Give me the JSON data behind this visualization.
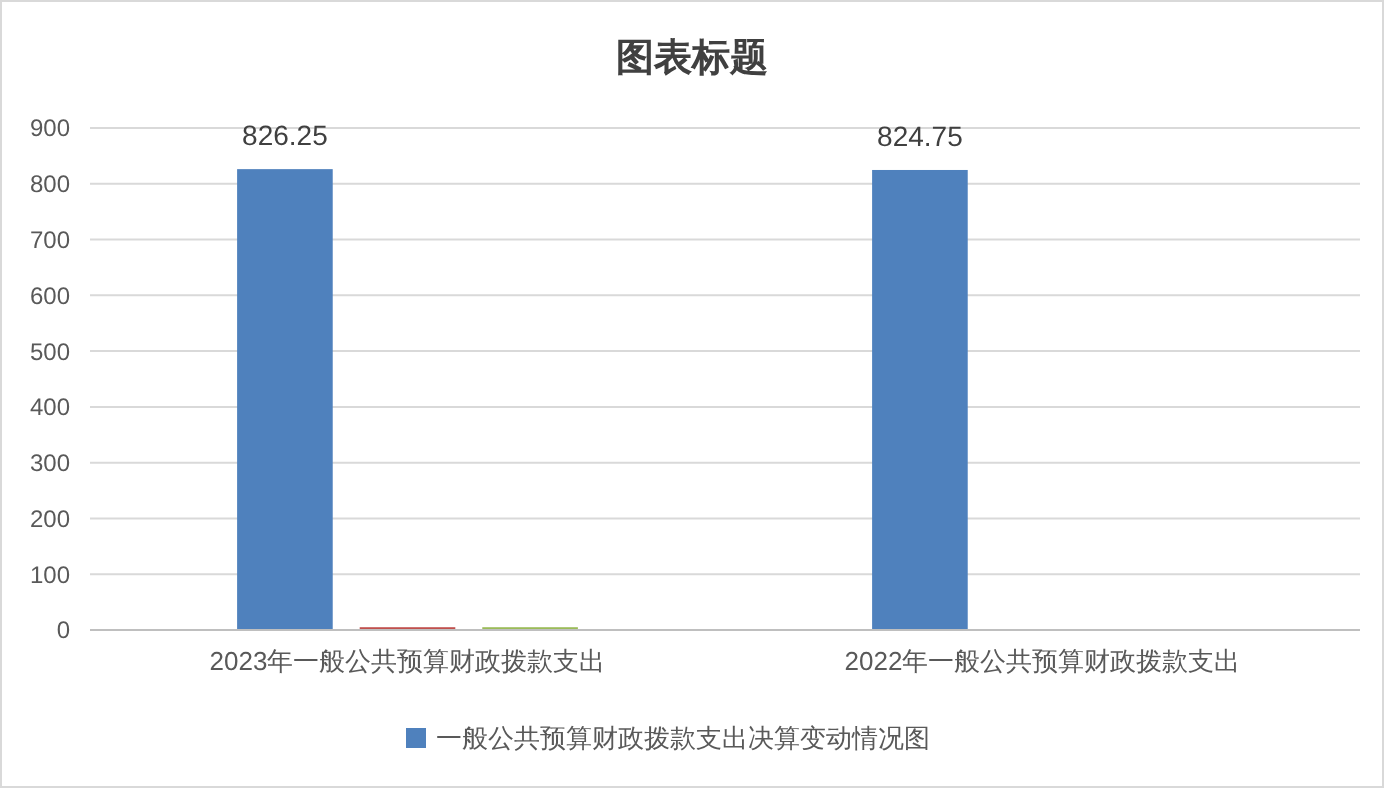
{
  "chart_data": {
    "type": "bar",
    "title": "图表标题",
    "categories": [
      "2023年一般公共预算财政拨款支出",
      "2022年一般公共预算财政拨款支出"
    ],
    "series": [
      {
        "name": "一般公共预算财政拨款支出决算变动情况图",
        "color": "#4f81bd",
        "values": [
          826.25,
          824.75
        ],
        "value_labels": [
          "826.25",
          "824.75"
        ]
      },
      {
        "color": "#c0504d",
        "values": [
          5,
          null
        ]
      },
      {
        "color": "#9bbb59",
        "values": [
          5,
          null
        ]
      }
    ],
    "ylim": [
      0,
      900
    ],
    "yticks": [
      0,
      100,
      200,
      300,
      400,
      500,
      600,
      700,
      800,
      900
    ],
    "grid": "y",
    "legend": "bottom"
  }
}
